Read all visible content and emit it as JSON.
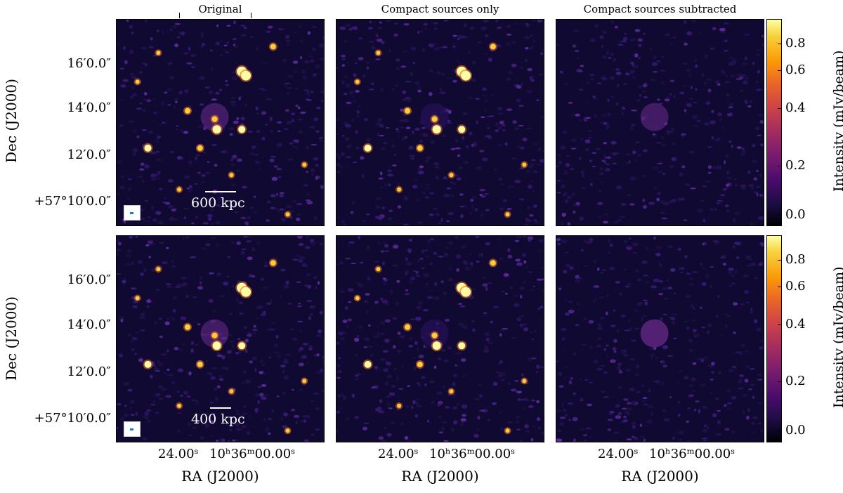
{
  "titles": {
    "col1": "Original",
    "col2": "Compact sources only",
    "col3": "Compact sources subtracted"
  },
  "axes": {
    "ylabel": "Dec (J2000)",
    "xlabel": "RA (J2000)",
    "dec_ticks": [
      "16′0.0″",
      "14′0.0″",
      "12′0.0″",
      "+57°10′0.0″"
    ],
    "ra_ticks": [
      "24.00ˢ",
      "10ʰ36ᵐ00.00ˢ"
    ]
  },
  "scalebars": {
    "top": "600 kpc",
    "bottom": "400 kpc"
  },
  "colorbar": {
    "label": "Intensity (mJy/beam)",
    "ticks": [
      "0.8",
      "0.6",
      "0.4",
      "0.2",
      "0.0"
    ],
    "colors": [
      "#000004",
      "#4a0c6b",
      "#a52c60",
      "#ed6925",
      "#fcffa4"
    ]
  }
}
